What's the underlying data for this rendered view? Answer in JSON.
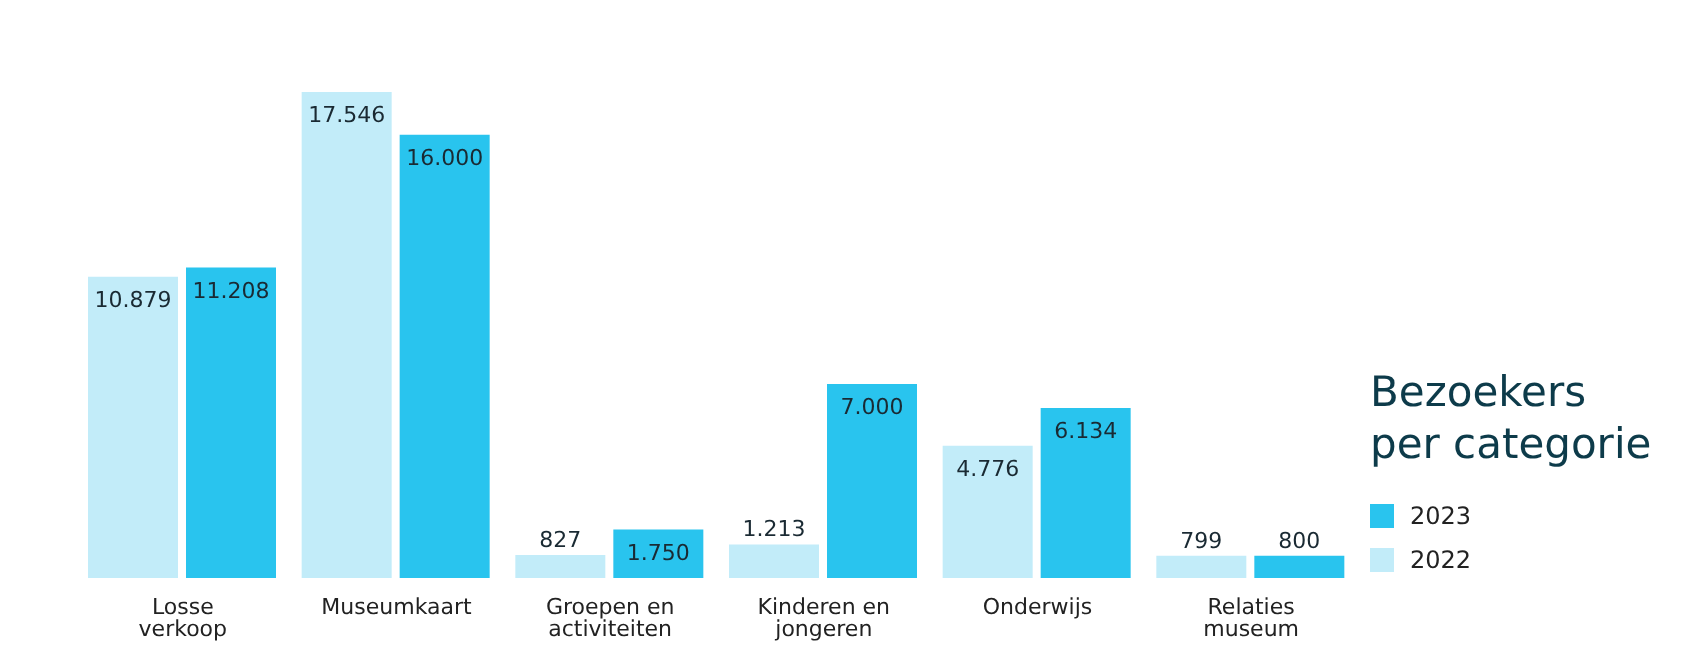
{
  "chart_data": {
    "type": "bar",
    "title": "Bezoekers per categorie",
    "categories": [
      "Losse verkoop",
      "Museumkaart",
      "Groepen en activiteiten",
      "Kinderen en jongeren",
      "Onderwijs",
      "Relaties museum"
    ],
    "series": [
      {
        "name": "2022",
        "color": "#c2ecf9",
        "values": [
          10879,
          17546,
          827,
          1213,
          4776,
          799
        ],
        "value_labels": [
          "10.879",
          "17.546",
          "827",
          "1.213",
          "4.776",
          "799"
        ]
      },
      {
        "name": "2023",
        "color": "#29c4ee",
        "values": [
          11208,
          16000,
          1750,
          7000,
          6134,
          800
        ],
        "value_labels": [
          "11.208",
          "16.000",
          "1.750",
          "7.000",
          "6.134",
          "800"
        ]
      }
    ],
    "legend": "right",
    "grid": false
  }
}
